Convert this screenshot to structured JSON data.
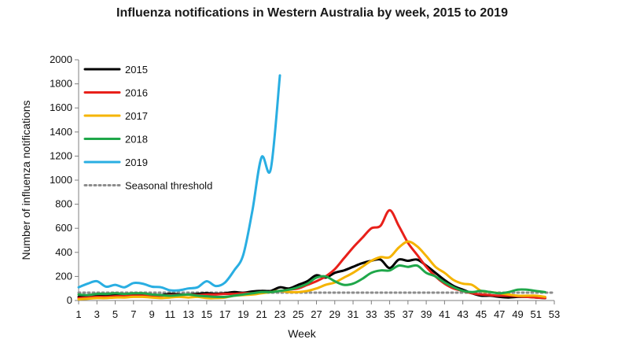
{
  "chart_data": {
    "type": "line",
    "title": "Influenza notifications in Western Australia by week, 2015 to 2019",
    "xlabel": "Week",
    "ylabel": "Number of influenza notifications",
    "xlim": [
      1,
      53
    ],
    "ylim": [
      0,
      2000
    ],
    "x_ticks": [
      1,
      3,
      5,
      7,
      9,
      11,
      13,
      15,
      17,
      19,
      21,
      23,
      25,
      27,
      29,
      31,
      33,
      35,
      37,
      39,
      41,
      43,
      45,
      47,
      49,
      51,
      53
    ],
    "y_ticks": [
      0,
      200,
      400,
      600,
      800,
      1000,
      1200,
      1400,
      1600,
      1800,
      2000
    ],
    "grid": false,
    "legend_position": "top-left",
    "series": [
      {
        "name": "2015",
        "color": "#000000",
        "style": "solid",
        "x": [
          1,
          2,
          3,
          4,
          5,
          6,
          7,
          8,
          9,
          10,
          11,
          12,
          13,
          14,
          15,
          16,
          17,
          18,
          19,
          20,
          21,
          22,
          23,
          24,
          25,
          26,
          27,
          28,
          29,
          30,
          31,
          32,
          33,
          34,
          35,
          36,
          37,
          38,
          39,
          40,
          41,
          42,
          43,
          44,
          45,
          46,
          47,
          48,
          49,
          50,
          51,
          52
        ],
        "values": [
          30,
          35,
          40,
          45,
          50,
          45,
          50,
          55,
          50,
          45,
          55,
          50,
          50,
          55,
          60,
          55,
          60,
          70,
          65,
          75,
          80,
          80,
          110,
          100,
          130,
          160,
          210,
          190,
          230,
          250,
          280,
          310,
          330,
          340,
          270,
          340,
          330,
          340,
          290,
          230,
          170,
          120,
          90,
          60,
          40,
          40,
          30,
          25,
          30,
          30,
          25,
          20
        ]
      },
      {
        "name": "2016",
        "color": "#e8201a",
        "style": "solid",
        "x": [
          1,
          2,
          3,
          4,
          5,
          6,
          7,
          8,
          9,
          10,
          11,
          12,
          13,
          14,
          15,
          16,
          17,
          18,
          19,
          20,
          21,
          22,
          23,
          24,
          25,
          26,
          27,
          28,
          29,
          30,
          31,
          32,
          33,
          34,
          35,
          36,
          37,
          38,
          39,
          40,
          41,
          42,
          43,
          44,
          45,
          46,
          47,
          48,
          49,
          50,
          51,
          52
        ],
        "values": [
          20,
          25,
          30,
          30,
          35,
          35,
          40,
          40,
          40,
          40,
          45,
          45,
          50,
          45,
          50,
          50,
          55,
          55,
          60,
          60,
          65,
          70,
          80,
          90,
          100,
          130,
          160,
          200,
          260,
          350,
          440,
          520,
          600,
          620,
          750,
          620,
          480,
          380,
          280,
          200,
          140,
          100,
          80,
          60,
          50,
          45,
          40,
          40,
          35,
          30,
          25,
          20
        ]
      },
      {
        "name": "2017",
        "color": "#f5b400",
        "style": "solid",
        "x": [
          1,
          2,
          3,
          4,
          5,
          6,
          7,
          8,
          9,
          10,
          11,
          12,
          13,
          14,
          15,
          16,
          17,
          18,
          19,
          20,
          21,
          22,
          23,
          24,
          25,
          26,
          27,
          28,
          29,
          30,
          31,
          32,
          33,
          34,
          35,
          36,
          37,
          38,
          39,
          40,
          41,
          42,
          43,
          44,
          45,
          46,
          47,
          48,
          49,
          50,
          51,
          52
        ],
        "values": [
          10,
          15,
          20,
          20,
          25,
          25,
          30,
          30,
          25,
          20,
          25,
          30,
          25,
          30,
          20,
          20,
          25,
          40,
          45,
          50,
          60,
          70,
          80,
          70,
          70,
          80,
          100,
          130,
          150,
          190,
          230,
          280,
          330,
          360,
          360,
          440,
          490,
          450,
          370,
          280,
          230,
          170,
          140,
          130,
          80,
          70,
          60,
          50,
          40,
          40,
          40,
          30
        ]
      },
      {
        "name": "2018",
        "color": "#1fa74a",
        "style": "solid",
        "x": [
          1,
          2,
          3,
          4,
          5,
          6,
          7,
          8,
          9,
          10,
          11,
          12,
          13,
          14,
          15,
          16,
          17,
          18,
          19,
          20,
          21,
          22,
          23,
          24,
          25,
          26,
          27,
          28,
          29,
          30,
          31,
          32,
          33,
          34,
          35,
          36,
          37,
          38,
          39,
          40,
          41,
          42,
          43,
          44,
          45,
          46,
          47,
          48,
          49,
          50,
          51,
          52
        ],
        "values": [
          50,
          45,
          55,
          55,
          60,
          55,
          60,
          60,
          50,
          45,
          40,
          45,
          50,
          40,
          35,
          30,
          30,
          40,
          50,
          60,
          70,
          70,
          80,
          90,
          110,
          140,
          190,
          200,
          160,
          130,
          140,
          180,
          230,
          250,
          250,
          290,
          280,
          290,
          230,
          200,
          150,
          110,
          80,
          70,
          80,
          70,
          60,
          70,
          90,
          90,
          80,
          70
        ]
      },
      {
        "name": "2019",
        "color": "#29aee2",
        "style": "solid",
        "x": [
          1,
          2,
          3,
          4,
          5,
          6,
          7,
          8,
          9,
          10,
          11,
          12,
          13,
          14,
          15,
          16,
          17,
          18,
          19,
          20,
          21,
          22,
          23
        ],
        "values": [
          110,
          140,
          160,
          115,
          130,
          110,
          145,
          140,
          115,
          110,
          85,
          85,
          100,
          110,
          160,
          120,
          150,
          250,
          380,
          750,
          1190,
          1090,
          1870
        ]
      }
    ],
    "threshold": {
      "name": "Seasonal threshold",
      "color": "#8c8c8c",
      "style": "dotted",
      "value": 65,
      "x_range": [
        1,
        53
      ]
    }
  }
}
